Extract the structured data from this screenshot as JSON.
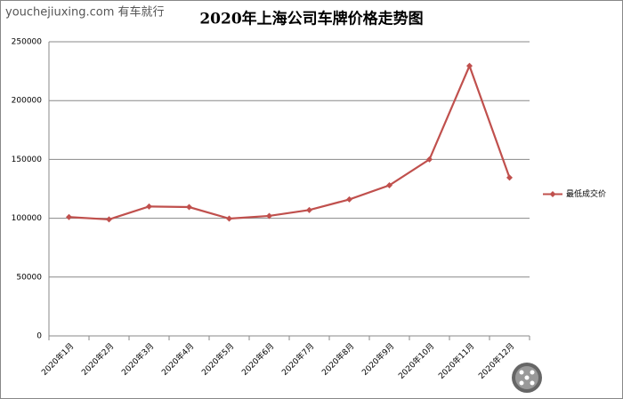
{
  "watermark": "youchejiuxing.com 有车就行",
  "chart_data": {
    "type": "line",
    "title": "2020年上海公司车牌价格走势图",
    "categories": [
      "2020年1月",
      "2020年2月",
      "2020年3月",
      "2020年4月",
      "2020年5月",
      "2020年6月",
      "2020年7月",
      "2020年8月",
      "2020年9月",
      "2020年10月",
      "2020年11月",
      "2020年12月"
    ],
    "series": [
      {
        "name": "最低成交价",
        "color": "#c0504d",
        "values": [
          101000,
          99000,
          110000,
          109500,
          99700,
          102000,
          107000,
          116000,
          128000,
          150000,
          229500,
          134500
        ]
      }
    ],
    "ylim": [
      0,
      250000
    ],
    "yticks": [
      0,
      50000,
      100000,
      150000,
      200000,
      250000
    ],
    "grid": true,
    "legend": "right"
  }
}
